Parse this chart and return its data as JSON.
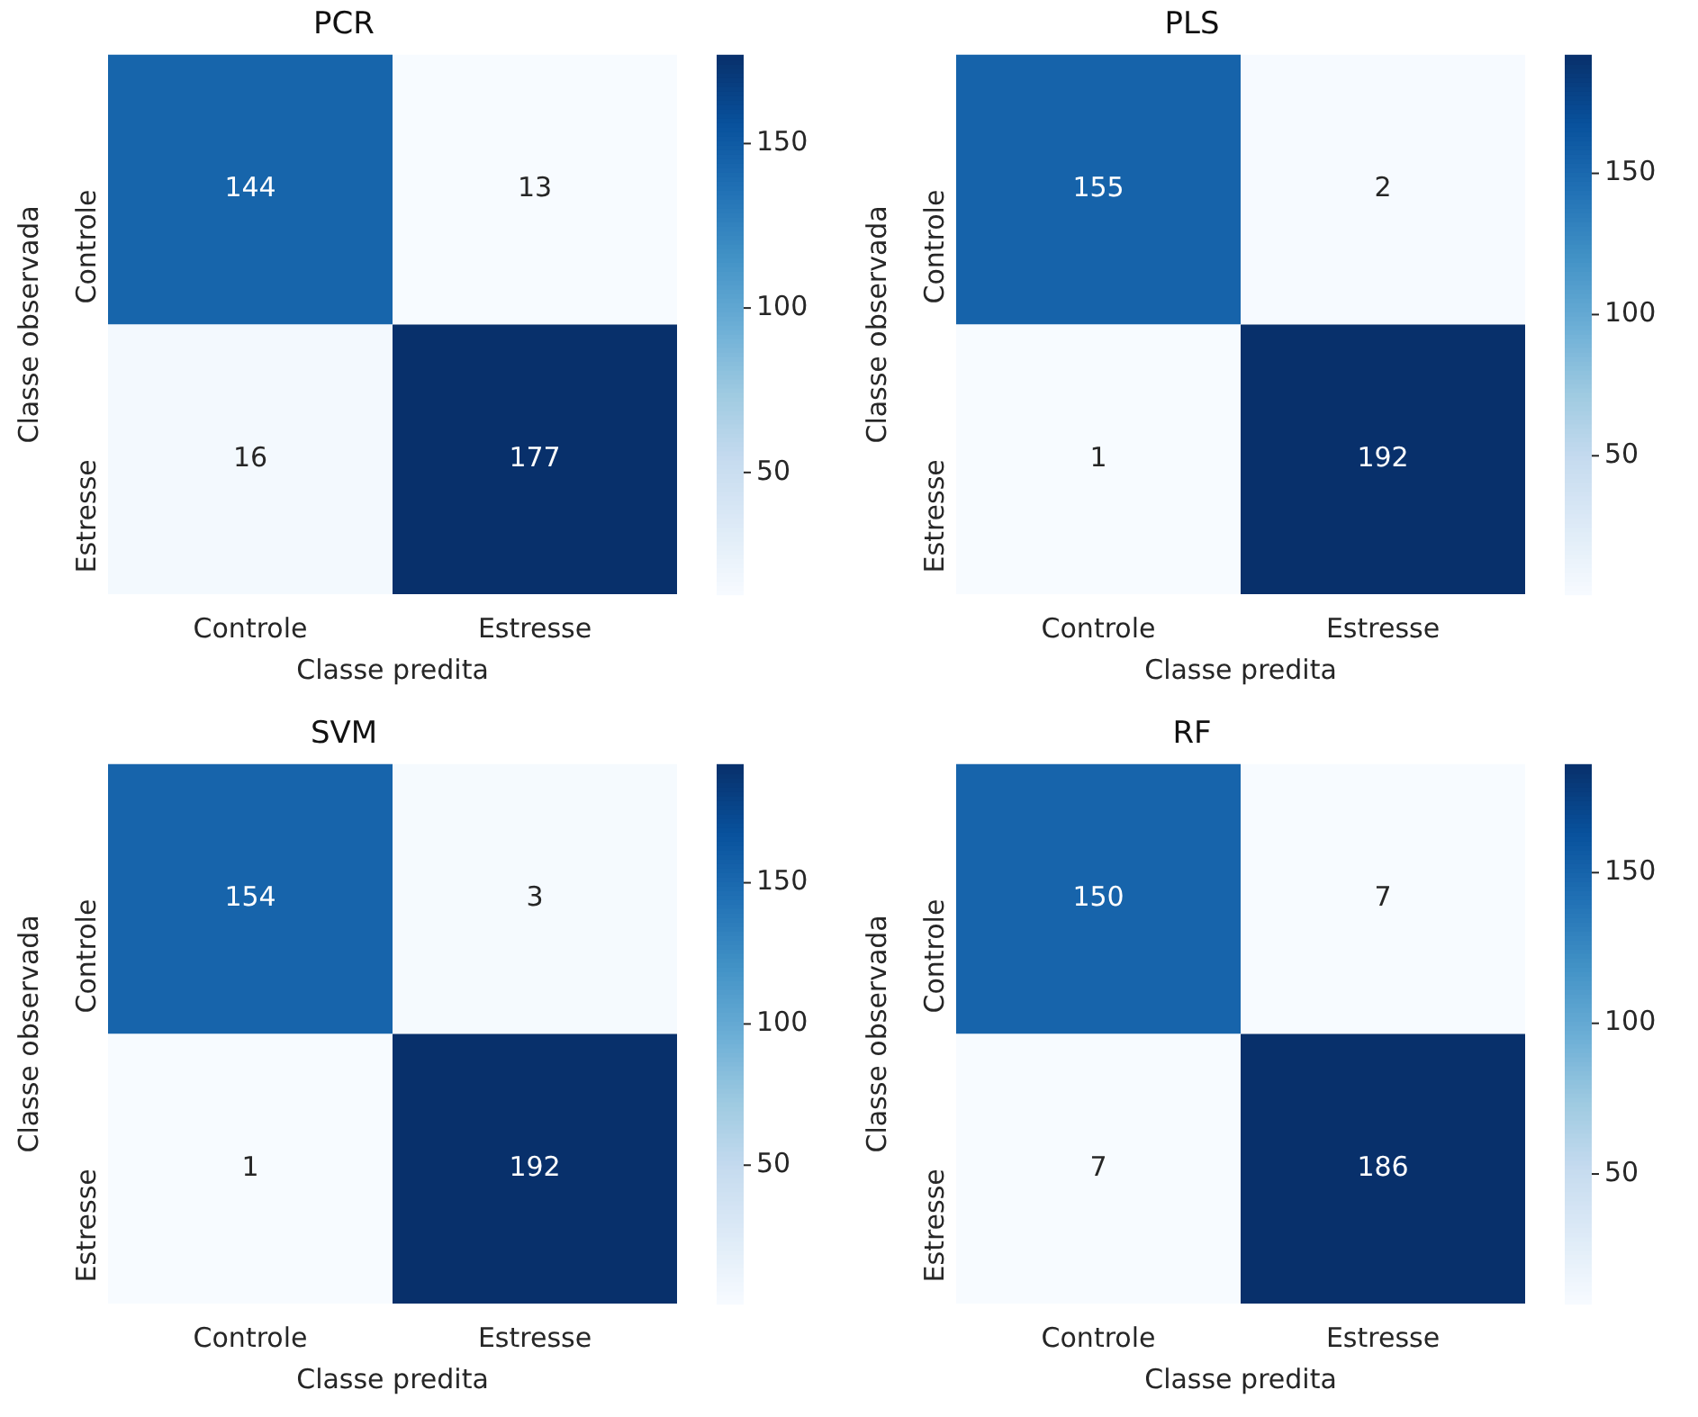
{
  "chart_data": [
    {
      "type": "heatmap",
      "title": "PCR",
      "xlabel": "Classe predita",
      "ylabel": "Classe observada",
      "categories": [
        "Controle",
        "Estresse"
      ],
      "y_categories": [
        "Controle",
        "Estresse"
      ],
      "cells": [
        [
          144,
          13
        ],
        [
          16,
          177
        ]
      ],
      "data_labels": true,
      "clim": [
        13,
        177
      ],
      "cticks": [
        50,
        100,
        150
      ]
    },
    {
      "type": "heatmap",
      "title": "PLS",
      "xlabel": "Classe predita",
      "ylabel": "Classe observada",
      "categories": [
        "Controle",
        "Estresse"
      ],
      "y_categories": [
        "Controle",
        "Estresse"
      ],
      "cells": [
        [
          155,
          2
        ],
        [
          1,
          192
        ]
      ],
      "data_labels": true,
      "clim": [
        1,
        192
      ],
      "cticks": [
        50,
        100,
        150
      ]
    },
    {
      "type": "heatmap",
      "title": "SVM",
      "xlabel": "Classe predita",
      "ylabel": "Classe observada",
      "categories": [
        "Controle",
        "Estresse"
      ],
      "y_categories": [
        "Controle",
        "Estresse"
      ],
      "cells": [
        [
          154,
          3
        ],
        [
          1,
          192
        ]
      ],
      "data_labels": true,
      "clim": [
        1,
        192
      ],
      "cticks": [
        50,
        100,
        150
      ]
    },
    {
      "type": "heatmap",
      "title": "RF",
      "xlabel": "Classe predita",
      "ylabel": "Classe observada",
      "categories": [
        "Controle",
        "Estresse"
      ],
      "y_categories": [
        "Controle",
        "Estresse"
      ],
      "cells": [
        [
          150,
          7
        ],
        [
          7,
          186
        ]
      ],
      "data_labels": true,
      "clim": [
        7,
        186
      ],
      "cticks": [
        50,
        100,
        150
      ]
    }
  ]
}
